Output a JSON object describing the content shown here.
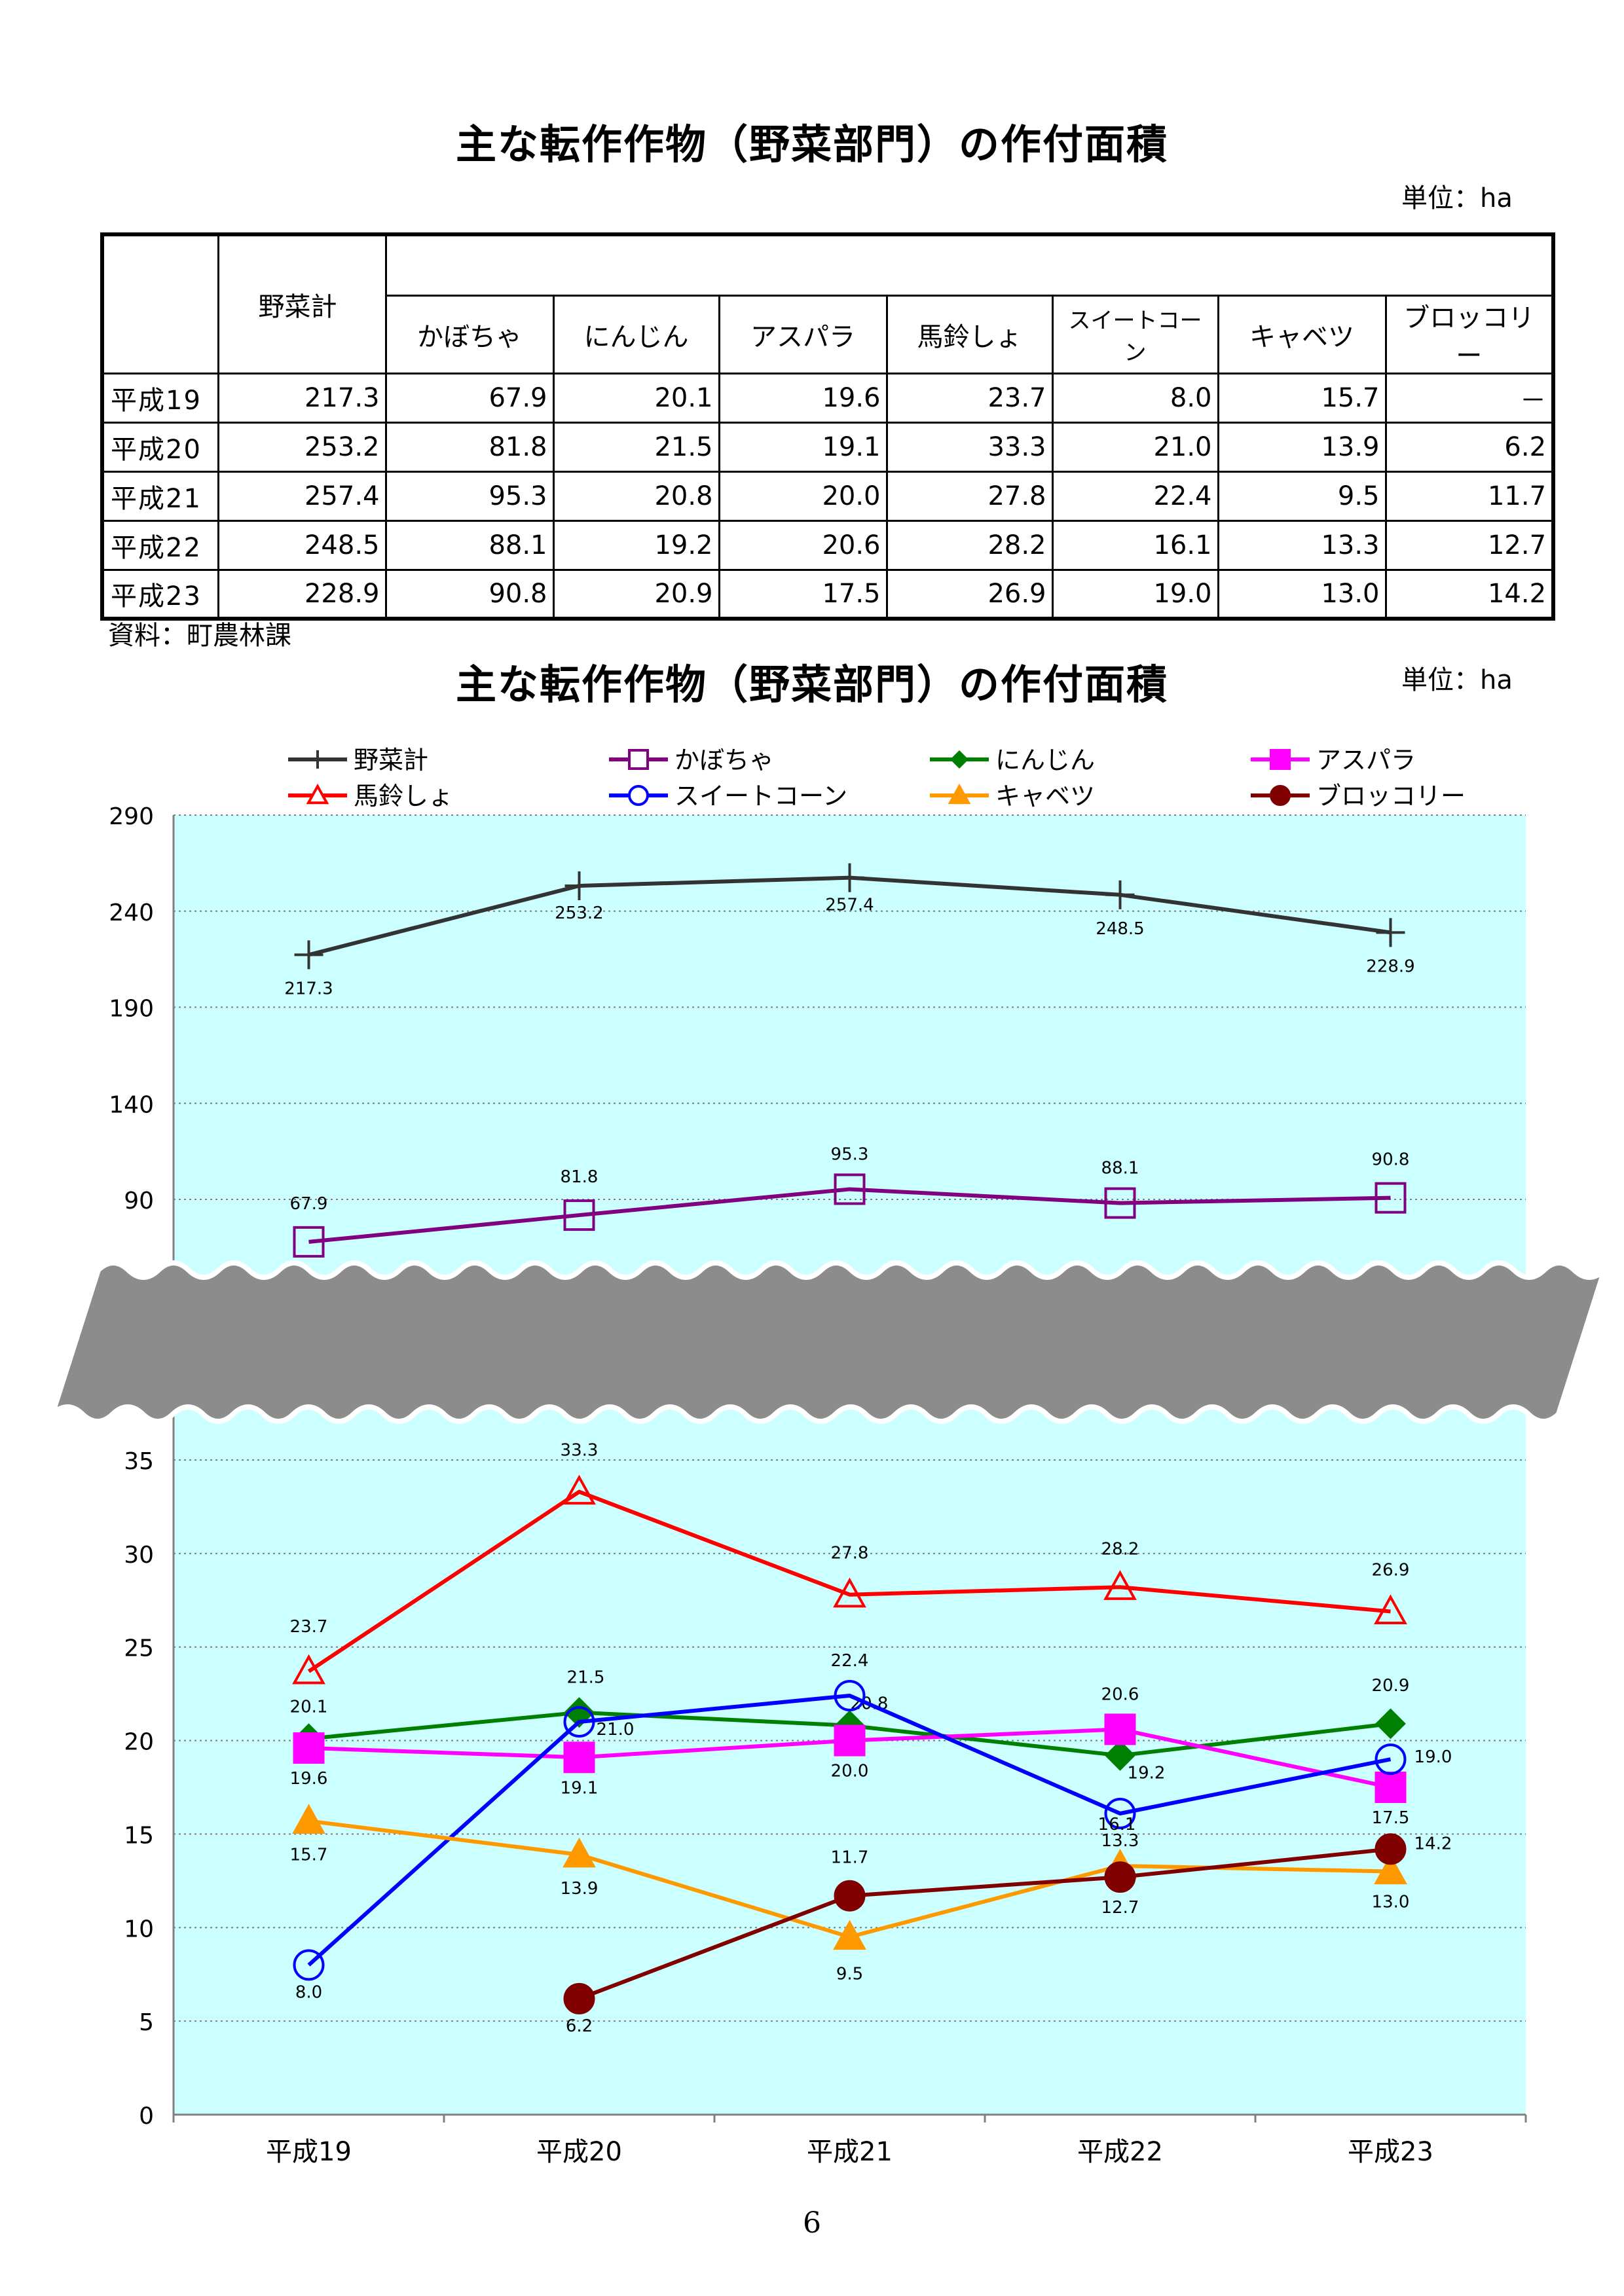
{
  "table": {
    "title": "主な転作作物（野菜部門）の作付面積",
    "unit": "単位：ha",
    "total_header": "野菜計",
    "crop_headers": [
      "かぼちゃ",
      "にんじん",
      "アスパラ",
      "馬鈴しょ",
      "スイートコーン",
      "キャベツ",
      "ブロッコリー"
    ],
    "rows": [
      {
        "year": "平成19",
        "cells": [
          "217.3",
          "67.9",
          "20.1",
          "19.6",
          "23.7",
          "8.0",
          "15.7",
          "－"
        ]
      },
      {
        "year": "平成20",
        "cells": [
          "253.2",
          "81.8",
          "21.5",
          "19.1",
          "33.3",
          "21.0",
          "13.9",
          "6.2"
        ]
      },
      {
        "year": "平成21",
        "cells": [
          "257.4",
          "95.3",
          "20.8",
          "20.0",
          "27.8",
          "22.4",
          "9.5",
          "11.7"
        ]
      },
      {
        "year": "平成22",
        "cells": [
          "248.5",
          "88.1",
          "19.2",
          "20.6",
          "28.2",
          "16.1",
          "13.3",
          "12.7"
        ]
      },
      {
        "year": "平成23",
        "cells": [
          "228.9",
          "90.8",
          "20.9",
          "17.5",
          "26.9",
          "19.0",
          "13.0",
          "14.2"
        ]
      }
    ],
    "source": "資料：町農林課"
  },
  "chart_data": {
    "type": "line",
    "title": "主な転作作物（野菜部門）の作付面積",
    "unit": "単位：ha",
    "categories": [
      "平成19",
      "平成20",
      "平成21",
      "平成22",
      "平成23"
    ],
    "axis_break": {
      "lower_range": [
        0,
        35
      ],
      "upper_range": [
        90,
        290
      ]
    },
    "y_ticks_upper": [
      90,
      140,
      190,
      240,
      290
    ],
    "y_ticks_lower": [
      0,
      5,
      10,
      15,
      20,
      25,
      30,
      35
    ],
    "grid": true,
    "legend_position": "top",
    "background_color": "#ccffff",
    "series": [
      {
        "name": "野菜計",
        "color": "#333333",
        "marker": "plus",
        "values": [
          217.3,
          253.2,
          257.4,
          248.5,
          228.9
        ]
      },
      {
        "name": "かぼちゃ",
        "color": "#800080",
        "marker": "square-open",
        "values": [
          67.9,
          81.8,
          95.3,
          88.1,
          90.8
        ]
      },
      {
        "name": "にんじん",
        "color": "#008000",
        "marker": "diamond",
        "values": [
          20.1,
          21.5,
          20.8,
          19.2,
          20.9
        ]
      },
      {
        "name": "アスパラ",
        "color": "#ff00ff",
        "marker": "square",
        "values": [
          19.6,
          19.1,
          20.0,
          20.6,
          17.5
        ]
      },
      {
        "name": "馬鈴しょ",
        "color": "#ff0000",
        "marker": "triangle-open",
        "values": [
          23.7,
          33.3,
          27.8,
          28.2,
          26.9
        ]
      },
      {
        "name": "スイートコーン",
        "color": "#0000ff",
        "marker": "circle-open",
        "values": [
          8.0,
          21.0,
          22.4,
          16.1,
          19.0
        ]
      },
      {
        "name": "キャベツ",
        "color": "#ff9900",
        "marker": "triangle",
        "values": [
          15.7,
          13.9,
          9.5,
          13.3,
          13.0
        ]
      },
      {
        "name": "ブロッコリー",
        "color": "#800000",
        "marker": "circle",
        "values": [
          null,
          6.2,
          11.7,
          12.7,
          14.2
        ]
      }
    ]
  },
  "page_number": "6"
}
